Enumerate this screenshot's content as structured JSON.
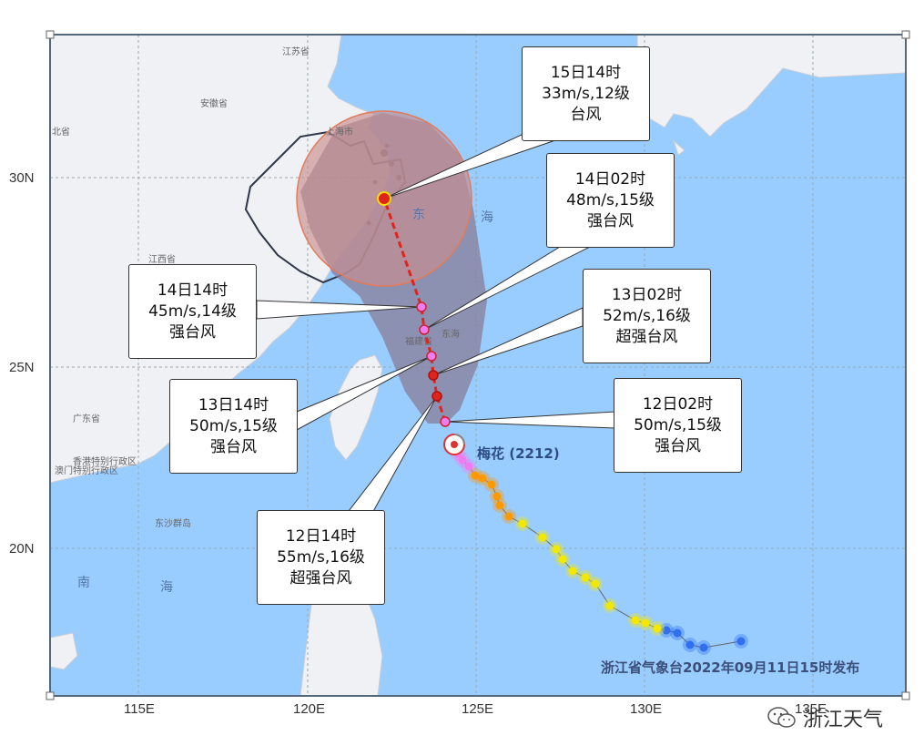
{
  "map": {
    "axis": {
      "lon_ticks": [
        "115E",
        "120E",
        "125E",
        "130E",
        "135E"
      ],
      "lat_ticks": [
        "30N",
        "25N",
        "20N"
      ]
    },
    "places": [
      "江苏省",
      "安徽省",
      "上海市",
      "江西省",
      "广东省",
      "香港特别行政区",
      "澳门特别行政区",
      "北省",
      "福建省",
      "东海",
      "南海",
      "东沙群岛"
    ],
    "sea_labels": [
      "东",
      "海",
      "南",
      "海"
    ],
    "typhoon_name": "梅花 (2212)",
    "issuer": "浙江省气象台2022年09月11日15时发布",
    "track_colors": {
      "blue": "#2f6ff0",
      "yellow": "#f5e800",
      "orange": "#ff9900",
      "pink": "#f07cf0",
      "red": "#e0241b"
    }
  },
  "callouts": [
    {
      "time": "15日14时",
      "wind": "33m/s,12级",
      "category": "台风"
    },
    {
      "time": "14日02时",
      "wind": "48m/s,15级",
      "category": "强台风"
    },
    {
      "time": "14日14时",
      "wind": "45m/s,14级",
      "category": "强台风"
    },
    {
      "time": "13日02时",
      "wind": "52m/s,16级",
      "category": "超强台风"
    },
    {
      "time": "13日14时",
      "wind": "50m/s,15级",
      "category": "强台风"
    },
    {
      "time": "12日02时",
      "wind": "50m/s,15级",
      "category": "强台风"
    },
    {
      "time": "12日14时",
      "wind": "55m/s,16级",
      "category": "超强台风"
    }
  ],
  "watermark": "浙江天气"
}
